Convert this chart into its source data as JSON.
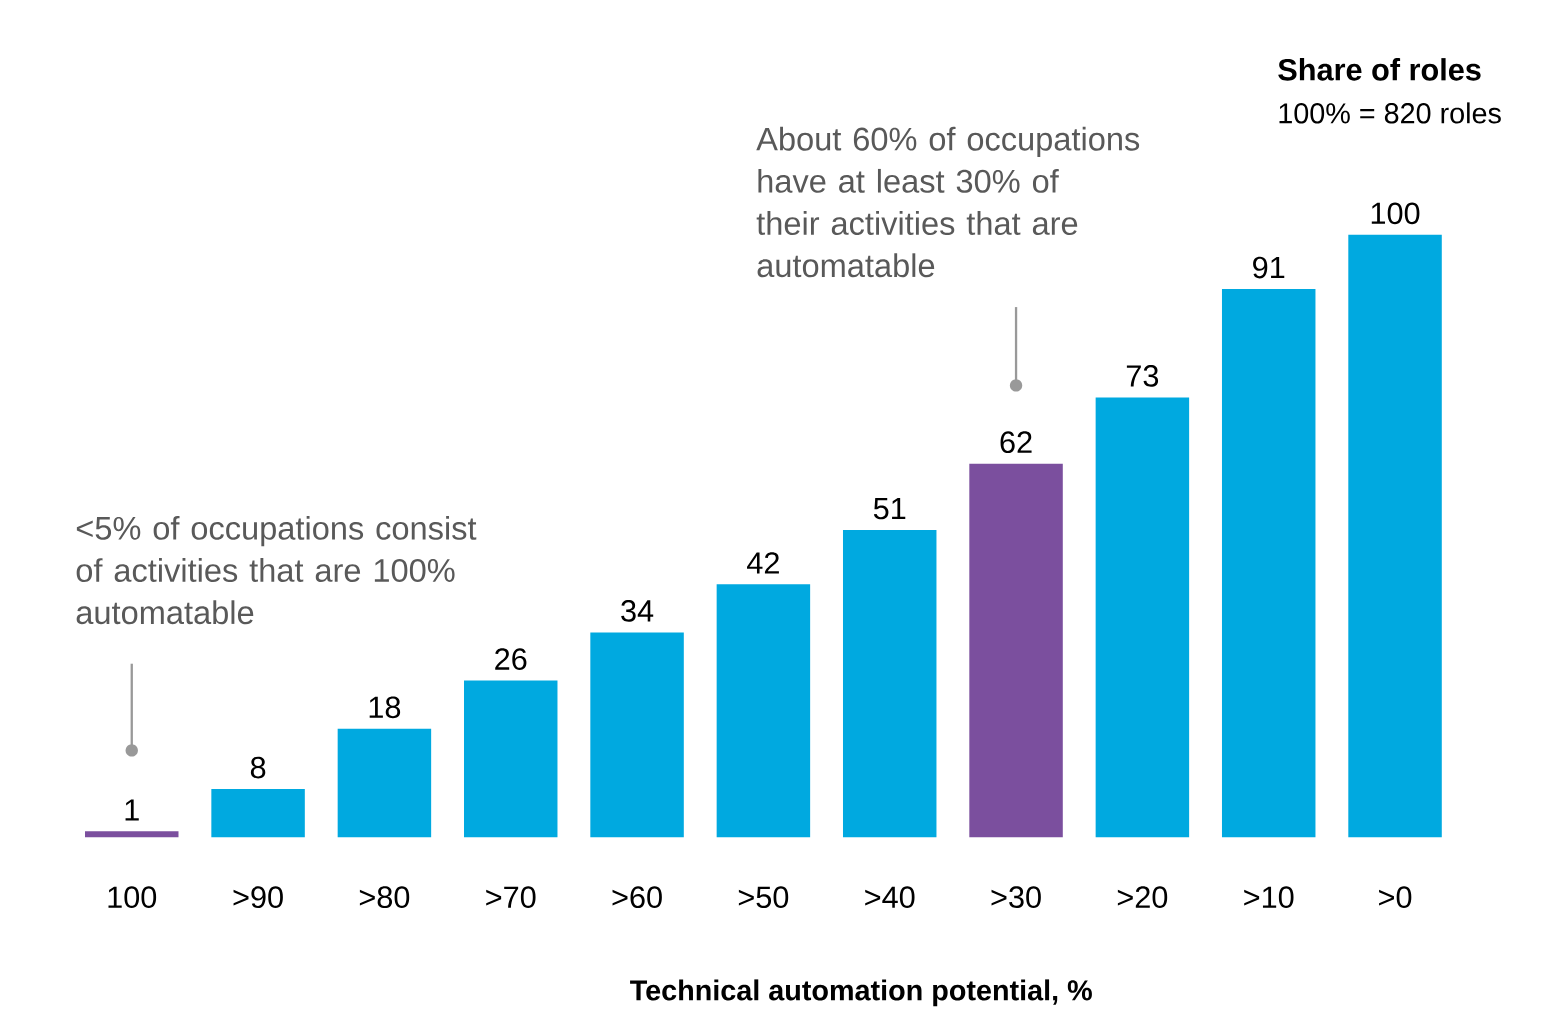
{
  "chart_data": {
    "type": "bar",
    "title": "Share of roles",
    "subtitle": "100% = 820 roles",
    "xlabel": "Technical automation potential, %",
    "categories": [
      "100",
      ">90",
      ">80",
      ">70",
      ">60",
      ">50",
      ">40",
      ">30",
      ">20",
      ">10",
      ">0"
    ],
    "values": [
      1,
      8,
      18,
      26,
      34,
      42,
      51,
      62,
      73,
      91,
      100
    ],
    "colors": [
      "#7b4f9e",
      "#00a9e0",
      "#00a9e0",
      "#00a9e0",
      "#00a9e0",
      "#00a9e0",
      "#00a9e0",
      "#7b4f9e",
      "#00a9e0",
      "#00a9e0",
      "#00a9e0"
    ],
    "data_labels": true,
    "annotations": [
      "<5% of occupations consist of activities that are 100% automatable",
      "About 60% of occupations have at least 30% of their activities that are automatable"
    ]
  }
}
